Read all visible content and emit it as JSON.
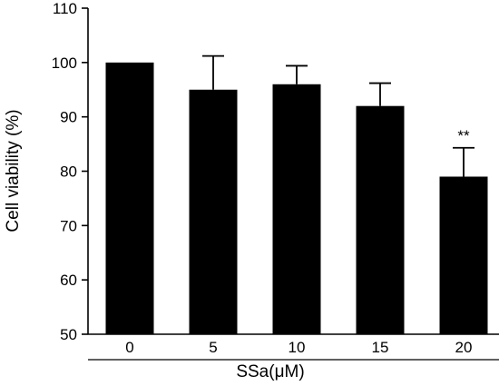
{
  "chart_data": {
    "type": "bar",
    "categories": [
      "0",
      "5",
      "10",
      "15",
      "20"
    ],
    "values": [
      100,
      95,
      96,
      92,
      79
    ],
    "error": [
      0,
      6.2,
      3.4,
      4.2,
      5.3
    ],
    "annotations": [
      {
        "category": "20",
        "text": "**"
      }
    ],
    "xlabel": "SSa(μM)",
    "ylabel": "Cell viability (%)",
    "ylim": [
      50,
      110
    ],
    "yticks": [
      50,
      60,
      70,
      80,
      90,
      100,
      110
    ],
    "grid": false,
    "bar_color": "#000000"
  }
}
